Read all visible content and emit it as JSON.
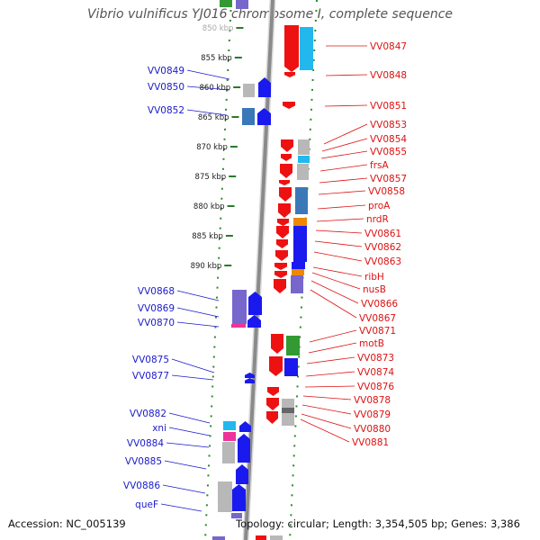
{
  "title": "Vibrio vulnificus YJ016 chromosome I, complete sequence",
  "footer": {
    "accession": "Accession: NC_005139",
    "summary": "Topology: circular; Length: 3,354,505 bp; Genes: 3,386"
  },
  "colors": {
    "backbone": "#8a8a8a",
    "tick_dot": "#2a8a2a",
    "left_label": "#1a1acc",
    "right_label": "#dd1111",
    "cds_blue": "#1a1aee",
    "cds_red": "#ee1111",
    "cds_gray": "#b8b8b8",
    "cds_steel": "#3a78b8",
    "cds_cyan": "#22b8ee",
    "cds_purple": "#7766cc",
    "cds_green": "#339933",
    "cds_orange": "#ee8800",
    "cds_pink": "#ee3399"
  },
  "scale_labels": [
    {
      "text": "850 kbp",
      "kb": 850
    },
    {
      "text": "855 kbp",
      "kb": 855
    },
    {
      "text": "860 kbp",
      "kb": 860
    },
    {
      "text": "865 kbp",
      "kb": 865
    },
    {
      "text": "870 kbp",
      "kb": 870
    },
    {
      "text": "875 kbp",
      "kb": 875
    },
    {
      "text": "880 kbp",
      "kb": 880
    },
    {
      "text": "885 kbp",
      "kb": 885
    },
    {
      "text": "890 kbp",
      "kb": 890
    }
  ],
  "left_genes": [
    "VV0849",
    "VV0850",
    "VV0852",
    "VV0868",
    "VV0869",
    "VV0870",
    "VV0875",
    "VV0877",
    "VV0882",
    "xni",
    "VV0884",
    "VV0885",
    "VV0886",
    "queF"
  ],
  "right_genes": [
    "VV0847",
    "VV0848",
    "VV0851",
    "VV0853",
    "VV0854",
    "VV0855",
    "frsA",
    "VV0857",
    "VV0858",
    "proA",
    "nrdR",
    "VV0861",
    "VV0862",
    "VV0863",
    "ribH",
    "nusB",
    "VV0866",
    "VV0867",
    "VV0871",
    "motB",
    "VV0873",
    "VV0874",
    "VV0876",
    "VV0878",
    "VV0879",
    "VV0880",
    "VV0881"
  ]
}
